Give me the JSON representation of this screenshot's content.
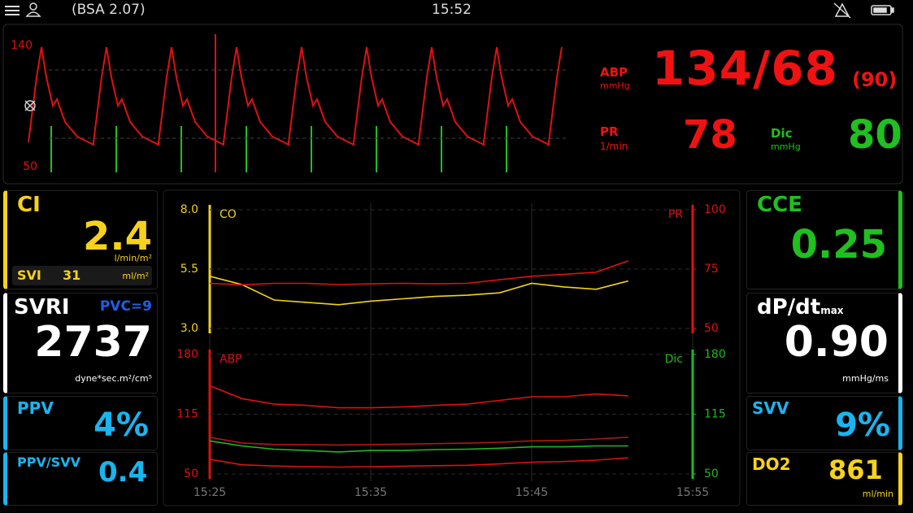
{
  "status_bar": {
    "patient": "(BSA 2.07)",
    "time": "15:52"
  },
  "waveform": {
    "scale_max": 140,
    "scale_min": 50
  },
  "vitals": {
    "abp": {
      "label": "ABP",
      "unit": "mmHg",
      "value": "134/68",
      "mean": "(90)"
    },
    "pr": {
      "label": "PR",
      "unit": "1/min",
      "value": 78
    },
    "dic": {
      "label": "Dic",
      "unit": "mmHg",
      "value": 80
    }
  },
  "left_tiles": {
    "ci": {
      "label": "CI",
      "value": "2.4",
      "unit": "l/min/m²",
      "svi": {
        "label": "SVI",
        "value": 31,
        "unit": "ml/m²"
      }
    },
    "svri": {
      "label": "SVRI",
      "pvc": "PVC=9",
      "value": 2737,
      "unit": "dyne*sec.m²/cm⁵"
    },
    "ppv": {
      "label": "PPV",
      "value": "4%"
    },
    "ppv_svv": {
      "label": "PPV/SVV",
      "value": "0.4"
    }
  },
  "right_tiles": {
    "cce": {
      "label": "CCE",
      "value": "0.25"
    },
    "dpdt": {
      "label": "dP/dt",
      "subscript": "max",
      "value": "0.90",
      "unit": "mmHg/ms"
    },
    "svv": {
      "label": "SVV",
      "value": "9%"
    },
    "do2": {
      "label": "DO2",
      "value": 861,
      "unit": "ml/min"
    }
  },
  "trends": {
    "x": [
      "15:25",
      "15:27",
      "15:29",
      "15:31",
      "15:33",
      "15:35",
      "15:37",
      "15:39",
      "15:41",
      "15:43",
      "15:45",
      "15:47",
      "15:49",
      "15:51"
    ],
    "xlim": [
      "15:25",
      "15:55"
    ],
    "xticks": [
      "15:25",
      "15:35",
      "15:45",
      "15:55"
    ],
    "top": {
      "ylim": [
        3,
        8
      ],
      "yticks": [
        {
          "value": 8,
          "label": "8.0"
        },
        {
          "value": 5.5,
          "label": "5.5"
        },
        {
          "value": 3,
          "label": "3.0"
        }
      ],
      "y2lim": [
        50,
        100
      ],
      "y2ticks": [
        100,
        75,
        50
      ],
      "series": [
        {
          "name": "CO",
          "color": "#f2d21b",
          "values": [
            5.2,
            4.85,
            4.2,
            4.1,
            4.0,
            4.15,
            4.25,
            4.35,
            4.4,
            4.5,
            4.9,
            4.75,
            4.65,
            5.0
          ]
        },
        {
          "name": "PR",
          "color": "#e01010",
          "axis": "y2",
          "values": [
            69,
            68.4,
            69,
            69,
            68.5,
            68.8,
            69,
            68.8,
            69,
            70.5,
            72,
            72.8,
            73.7,
            78.5
          ]
        }
      ]
    },
    "bottom": {
      "ylim": [
        50,
        180
      ],
      "yticks": [
        180,
        115,
        50
      ],
      "y2lim": [
        50,
        180
      ],
      "y2ticks": [
        180,
        115,
        50
      ],
      "series": [
        {
          "name": "ABP",
          "color": "#e01010",
          "values": [
            146,
            132,
            126,
            124.6,
            122,
            122,
            123,
            124.6,
            126,
            130,
            134,
            134,
            137,
            135
          ]
        },
        {
          "color": "#b01818",
          "values": [
            90,
            83.7,
            82,
            82,
            81.5,
            82,
            82.5,
            83,
            83.5,
            84.5,
            86,
            86.5,
            88,
            90
          ]
        },
        {
          "color": "#e01010",
          "values": [
            66,
            60,
            58.7,
            58,
            57.5,
            58,
            58.5,
            59,
            59.5,
            61,
            62.8,
            63.5,
            65,
            67.7
          ]
        },
        {
          "name": "Dic",
          "color": "#1fb81f",
          "axis": "y2",
          "values": [
            86,
            80.5,
            77,
            75.6,
            74,
            75.6,
            75.6,
            76.5,
            77,
            78,
            79.5,
            79.5,
            80.5,
            80.5
          ]
        }
      ]
    }
  }
}
